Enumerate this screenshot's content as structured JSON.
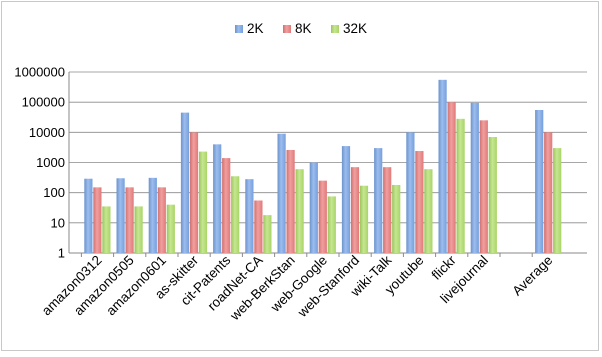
{
  "chart_data": {
    "type": "bar",
    "title": "",
    "xlabel": "",
    "ylabel": "",
    "y_scale": "log",
    "ylim": [
      1,
      1000000
    ],
    "y_ticks": [
      "1",
      "10",
      "100",
      "1000",
      "10000",
      "100000",
      "1000000"
    ],
    "y_tick_values": [
      1,
      10,
      100,
      1000,
      10000,
      100000,
      1000000
    ],
    "grid": "y-major",
    "legend_position": "top",
    "categories": [
      "amazon0312",
      "amazon0505",
      "amazon0601",
      "as-skitter",
      "cit-Patents",
      "roadNet-CA",
      "web-BerkStan",
      "web-Google",
      "web-Stanford",
      "wiki-Talk",
      "youtube",
      "flickr",
      "livejournal",
      "",
      "Average"
    ],
    "series": [
      {
        "name": "2K",
        "color": "#7ba7e8",
        "values": [
          290,
          300,
          310,
          45000,
          4000,
          280,
          9000,
          1000,
          3500,
          3000,
          10000,
          550000,
          95000,
          null,
          55000
        ]
      },
      {
        "name": "8K",
        "color": "#ec7f7f",
        "values": [
          150,
          150,
          150,
          10000,
          1400,
          55,
          2600,
          250,
          700,
          700,
          2400,
          100000,
          25000,
          null,
          10000
        ]
      },
      {
        "name": "32K",
        "color": "#b2df6c",
        "values": [
          35,
          35,
          40,
          2300,
          350,
          18,
          600,
          75,
          170,
          180,
          600,
          28000,
          7000,
          null,
          3000
        ]
      }
    ]
  }
}
